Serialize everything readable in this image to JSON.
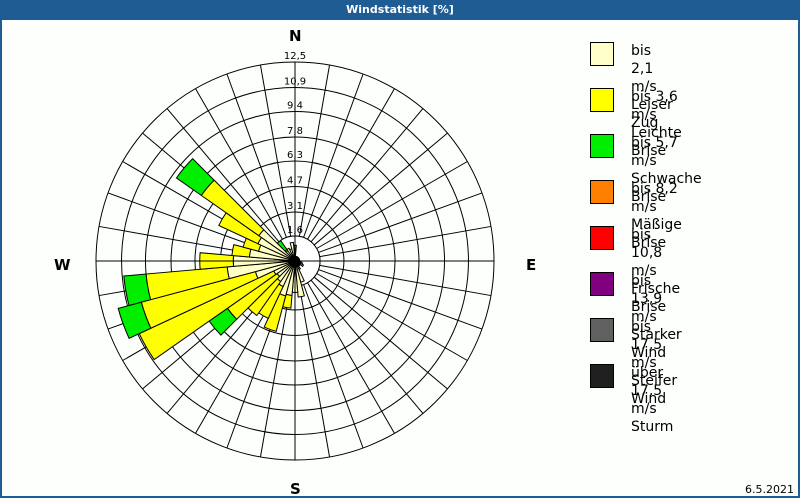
{
  "window": {
    "title": "Windstatistik [%]"
  },
  "footer": {
    "date": "6.5.2021"
  },
  "compass": {
    "N": "N",
    "E": "E",
    "S": "S",
    "W": "W"
  },
  "legend": [
    {
      "speed": "bis 2,1 m/s",
      "name": "Leiser Zug",
      "color": "#ffffc8"
    },
    {
      "speed": "bis 3,6 m/s",
      "name": "Leichte Brise",
      "color": "#ffff00"
    },
    {
      "speed": "bis 5,7 m/s",
      "name": "Schwache Brise",
      "color": "#00ee00"
    },
    {
      "speed": "bis 8,2 m/s",
      "name": "Mäßige Brise",
      "color": "#ff8000"
    },
    {
      "speed": "bis 10,8 m/s",
      "name": "Frische Brise",
      "color": "#ff0000"
    },
    {
      "speed": "bis 13,9 m/s",
      "name": "Starker Wind",
      "color": "#800080"
    },
    {
      "speed": "bis 17,5 m/s",
      "name": "Steifer Wind",
      "color": "#606060"
    },
    {
      "speed": "über 17,5 m/s",
      "name": "Sturm",
      "color": "#202020"
    }
  ],
  "chart_data": {
    "type": "wind-rose",
    "title": "Windstatistik [%]",
    "unit": "%",
    "ring_labels": [
      "1,6",
      "3,1",
      "4,7",
      "6,3",
      "7,8",
      "9,4",
      "10,9",
      "12,5"
    ],
    "ring_values": [
      1.6,
      3.1,
      4.7,
      6.3,
      7.8,
      9.4,
      10.9,
      12.5
    ],
    "sector_width_deg": 10,
    "series_names": [
      "bis 2,1 m/s",
      "bis 3,6 m/s",
      "bis 5,7 m/s"
    ],
    "sectors": [
      {
        "dir": 0,
        "cumulative": [
          1.0,
          1.0,
          1.0
        ]
      },
      {
        "dir": 10,
        "cumulative": [
          0.3,
          0.3,
          0.3
        ]
      },
      {
        "dir": 20,
        "cumulative": [
          0.3,
          0.3,
          0.3
        ]
      },
      {
        "dir": 30,
        "cumulative": [
          0.3,
          0.3,
          0.3
        ]
      },
      {
        "dir": 40,
        "cumulative": [
          0.3,
          0.3,
          0.3
        ]
      },
      {
        "dir": 50,
        "cumulative": [
          0.3,
          0.3,
          0.3
        ]
      },
      {
        "dir": 60,
        "cumulative": [
          0.3,
          0.3,
          0.3
        ]
      },
      {
        "dir": 70,
        "cumulative": [
          0.3,
          0.3,
          0.3
        ]
      },
      {
        "dir": 80,
        "cumulative": [
          0.3,
          0.3,
          0.3
        ]
      },
      {
        "dir": 90,
        "cumulative": [
          0.3,
          0.3,
          0.3
        ]
      },
      {
        "dir": 100,
        "cumulative": [
          0.4,
          0.4,
          0.4
        ]
      },
      {
        "dir": 110,
        "cumulative": [
          0.5,
          0.5,
          0.5
        ]
      },
      {
        "dir": 120,
        "cumulative": [
          0.6,
          0.6,
          0.6
        ]
      },
      {
        "dir": 130,
        "cumulative": [
          0.4,
          0.4,
          0.4
        ]
      },
      {
        "dir": 140,
        "cumulative": [
          0.4,
          0.4,
          0.4
        ]
      },
      {
        "dir": 150,
        "cumulative": [
          0.6,
          0.6,
          0.6
        ]
      },
      {
        "dir": 160,
        "cumulative": [
          1.4,
          1.4,
          1.4
        ]
      },
      {
        "dir": 170,
        "cumulative": [
          2.3,
          2.3,
          2.3
        ]
      },
      {
        "dir": 180,
        "cumulative": [
          2.0,
          2.0,
          2.0
        ]
      },
      {
        "dir": 190,
        "cumulative": [
          2.2,
          3.0,
          3.0
        ]
      },
      {
        "dir": 200,
        "cumulative": [
          2.3,
          4.6,
          4.6
        ]
      },
      {
        "dir": 210,
        "cumulative": [
          1.8,
          4.0,
          4.0
        ]
      },
      {
        "dir": 220,
        "cumulative": [
          1.6,
          4.2,
          4.2
        ]
      },
      {
        "dir": 230,
        "cumulative": [
          1.4,
          5.2,
          6.6
        ]
      },
      {
        "dir": 240,
        "cumulative": [
          1.5,
          10.8,
          10.8
        ]
      },
      {
        "dir": 250,
        "cumulative": [
          2.6,
          10.0,
          11.5
        ]
      },
      {
        "dir": 260,
        "cumulative": [
          4.3,
          9.4,
          10.8
        ]
      },
      {
        "dir": 270,
        "cumulative": [
          3.9,
          6.0,
          6.0
        ]
      },
      {
        "dir": 280,
        "cumulative": [
          2.9,
          4.0,
          4.0
        ]
      },
      {
        "dir": 290,
        "cumulative": [
          2.4,
          3.4,
          3.4
        ]
      },
      {
        "dir": 300,
        "cumulative": [
          2.6,
          5.3,
          5.3
        ]
      },
      {
        "dir": 310,
        "cumulative": [
          2.8,
          7.2,
          9.1
        ]
      },
      {
        "dir": 320,
        "cumulative": [
          0.8,
          0.9,
          1.6
        ]
      },
      {
        "dir": 330,
        "cumulative": [
          0.9,
          0.9,
          0.9
        ]
      },
      {
        "dir": 340,
        "cumulative": [
          0.8,
          0.8,
          0.8
        ]
      },
      {
        "dir": 350,
        "cumulative": [
          1.2,
          1.2,
          1.2
        ]
      }
    ],
    "legend_position": "right",
    "grid": true
  }
}
